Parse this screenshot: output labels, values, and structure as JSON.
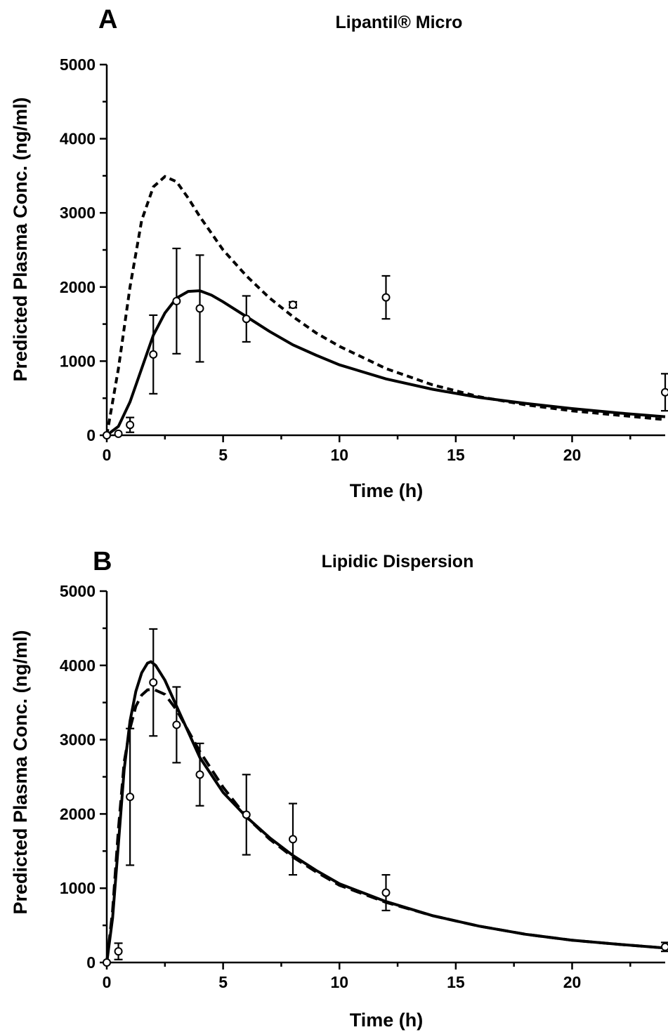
{
  "chart_data": [
    {
      "type": "line",
      "panel": "A",
      "title": "Lipantil® Micro",
      "xlabel": "Time (h)",
      "ylabel": "Predicted Plasma Conc. (ng/ml)",
      "xlim": [
        0,
        24
      ],
      "ylim": [
        0,
        5000
      ],
      "xticks": [
        "0",
        "5",
        "10",
        "15",
        "20"
      ],
      "yticks": [
        "0",
        "1000",
        "2000",
        "3000",
        "4000",
        "5000"
      ],
      "grid": false,
      "series": [
        {
          "style": "solid",
          "x": [
            0,
            0.5,
            1,
            1.5,
            2,
            2.5,
            3,
            3.5,
            4,
            4.5,
            5,
            6,
            7,
            8,
            9,
            10,
            12,
            14,
            16,
            18,
            20,
            22,
            24
          ],
          "values": [
            0,
            120,
            450,
            900,
            1350,
            1650,
            1850,
            1940,
            1950,
            1890,
            1800,
            1600,
            1400,
            1220,
            1080,
            950,
            760,
            620,
            510,
            430,
            360,
            300,
            250
          ]
        },
        {
          "style": "dashed",
          "x": [
            0,
            0.5,
            1,
            1.5,
            2,
            2.5,
            3,
            3.5,
            4,
            5,
            6,
            7,
            8,
            9,
            10,
            12,
            14,
            16,
            18,
            20,
            22,
            24
          ],
          "values": [
            0,
            900,
            2000,
            2900,
            3350,
            3490,
            3420,
            3200,
            2950,
            2500,
            2150,
            1850,
            1600,
            1380,
            1200,
            900,
            680,
            520,
            410,
            330,
            270,
            210
          ]
        },
        {
          "style": "points",
          "x": [
            0,
            0.5,
            1,
            2,
            3,
            4,
            6,
            8,
            12,
            24
          ],
          "values": [
            0,
            20,
            140,
            1090,
            1810,
            1710,
            1570,
            1760,
            1860,
            580
          ],
          "err": [
            0,
            0,
            100,
            530,
            710,
            720,
            310,
            40,
            290,
            250
          ]
        }
      ]
    },
    {
      "type": "line",
      "panel": "B",
      "title": "Lipidic Dispersion",
      "xlabel": "Time (h)",
      "ylabel": "Predicted Plasma Conc. (ng/ml)",
      "xlim": [
        0,
        24
      ],
      "ylim": [
        0,
        5000
      ],
      "xticks": [
        "0",
        "5",
        "10",
        "15",
        "20"
      ],
      "yticks": [
        "0",
        "1000",
        "2000",
        "3000",
        "4000",
        "5000"
      ],
      "grid": false,
      "series": [
        {
          "style": "solid",
          "x": [
            0,
            0.25,
            0.5,
            0.75,
            1,
            1.25,
            1.5,
            1.75,
            1.9,
            2.1,
            2.5,
            3,
            4,
            5,
            6,
            7,
            8,
            9,
            10,
            12,
            14,
            16,
            18,
            20,
            22,
            24
          ],
          "values": [
            0,
            600,
            1600,
            2600,
            3250,
            3650,
            3900,
            4030,
            4050,
            4000,
            3800,
            3450,
            2760,
            2290,
            1960,
            1680,
            1440,
            1240,
            1060,
            820,
            630,
            490,
            380,
            300,
            245,
            195
          ]
        },
        {
          "style": "dashed",
          "x": [
            0,
            0.25,
            0.5,
            0.75,
            1,
            1.25,
            1.5,
            1.75,
            2,
            2.5,
            3,
            4,
            5,
            6,
            7,
            8,
            9,
            10,
            12,
            14,
            16,
            18,
            20,
            22,
            24
          ],
          "values": [
            0,
            700,
            1800,
            2700,
            3150,
            3450,
            3600,
            3670,
            3680,
            3610,
            3400,
            2840,
            2360,
            1960,
            1660,
            1420,
            1220,
            1040,
            810,
            630,
            490,
            380,
            300,
            245,
            195
          ]
        },
        {
          "style": "points",
          "x": [
            0,
            0.5,
            1,
            2,
            3,
            4,
            6,
            8,
            12,
            24
          ],
          "values": [
            0,
            150,
            2230,
            3770,
            3200,
            2530,
            1990,
            1660,
            940,
            210
          ],
          "err": [
            0,
            110,
            920,
            720,
            510,
            420,
            540,
            480,
            240,
            60
          ]
        }
      ]
    }
  ]
}
